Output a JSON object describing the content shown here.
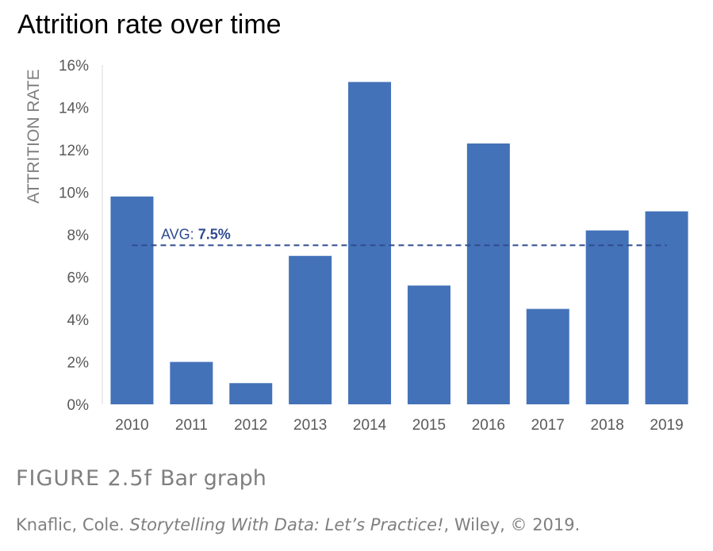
{
  "chart_data": {
    "type": "bar",
    "title": "Attrition rate over time",
    "xlabel": "",
    "ylabel": "ATTRITION RATE",
    "categories": [
      "2010",
      "2011",
      "2012",
      "2013",
      "2014",
      "2015",
      "2016",
      "2017",
      "2018",
      "2019"
    ],
    "values": [
      9.8,
      2.0,
      1.0,
      7.0,
      15.2,
      5.6,
      12.3,
      4.5,
      8.2,
      9.1
    ],
    "ylim": [
      0,
      16
    ],
    "yticks": [
      0,
      2,
      4,
      6,
      8,
      10,
      12,
      14,
      16
    ],
    "ytick_labels": [
      "0%",
      "2%",
      "4%",
      "6%",
      "8%",
      "10%",
      "12%",
      "14%",
      "16%"
    ],
    "grid": false,
    "average": {
      "value": 7.5,
      "label_prefix": "AVG: ",
      "label_value": "7.5%"
    },
    "colors": {
      "bar": "#4472b8",
      "avg_line": "#2f4b8f",
      "axis_text": "#595959",
      "ylabel": "#7f7f7f",
      "axis_line": "#d9d9d9"
    }
  },
  "figure": {
    "number": "FIGURE 2.5f",
    "caption": "Bar graph"
  },
  "citation": {
    "prefix": "Knaflic, Cole. ",
    "work": "Storytelling With Data: Let’s Practice!",
    "suffix": ", Wiley, © 2019."
  }
}
